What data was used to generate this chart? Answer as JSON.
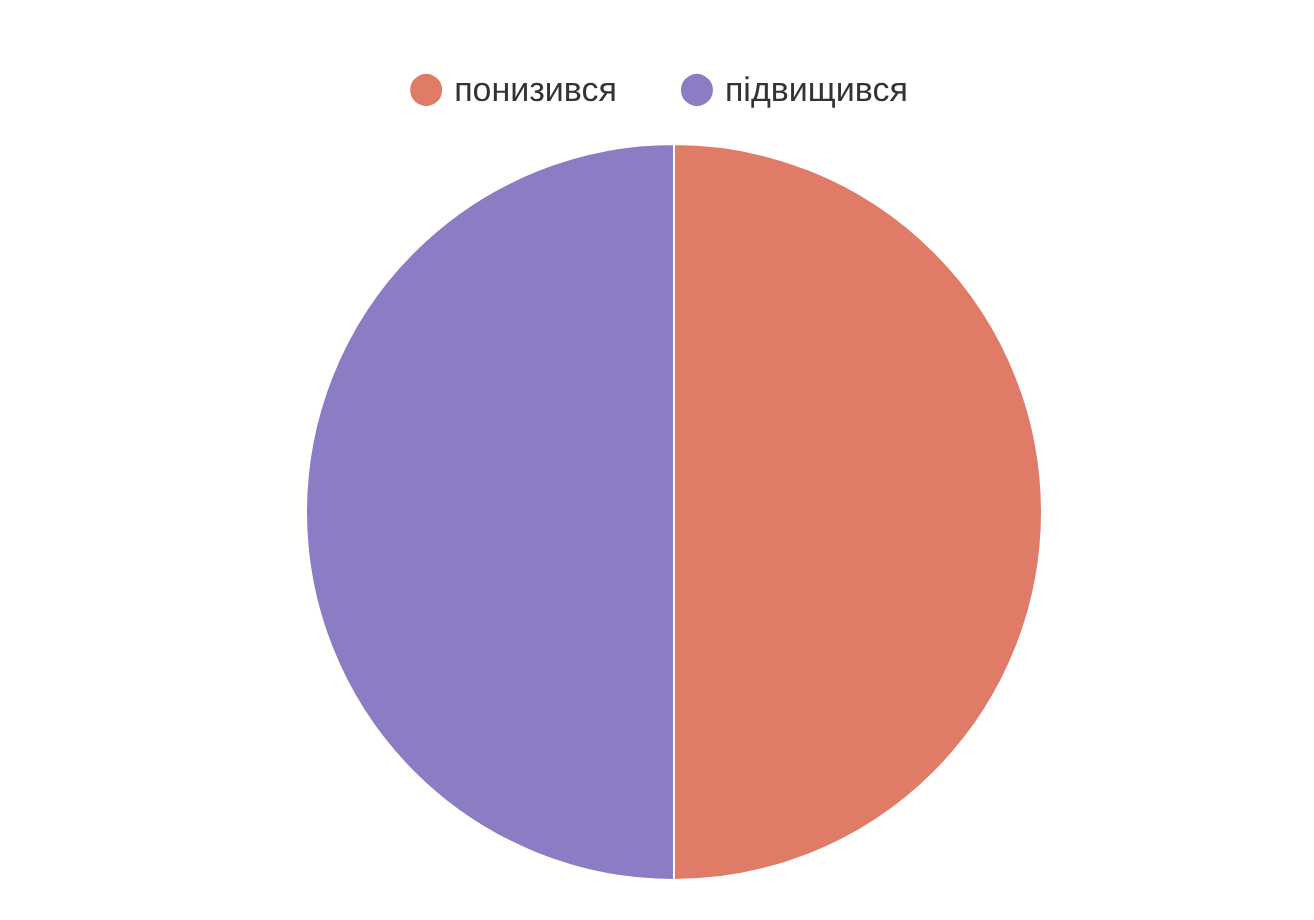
{
  "chart_data": {
    "type": "pie",
    "categories": [
      "понизився",
      "підвищився"
    ],
    "values": [
      50,
      50
    ],
    "colors": [
      "#df7b67",
      "#8c7cc4"
    ],
    "legend": "top"
  }
}
